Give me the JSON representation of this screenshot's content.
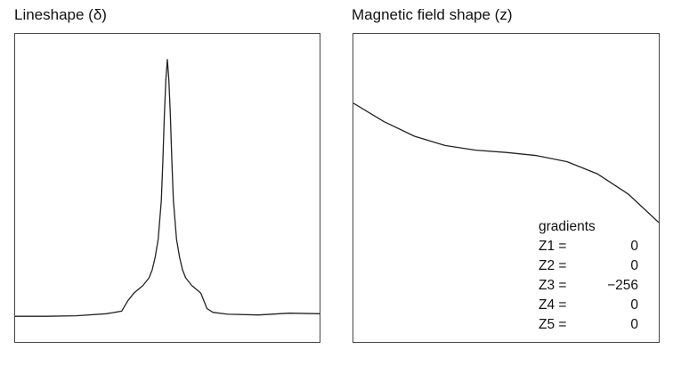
{
  "chart_data": [
    {
      "type": "line",
      "title": "Lineshape (δ)",
      "xlabel": "",
      "ylabel": "",
      "grid": false,
      "description": "Single narrow resonance peak with small shoulders near the base, centered in the window",
      "x": [
        0,
        0.1,
        0.2,
        0.3,
        0.35,
        0.37,
        0.39,
        0.4,
        0.42,
        0.44,
        0.45,
        0.46,
        0.47,
        0.48,
        0.485,
        0.49,
        0.495,
        0.5,
        0.505,
        0.51,
        0.515,
        0.52,
        0.53,
        0.54,
        0.55,
        0.56,
        0.58,
        0.6,
        0.61,
        0.63,
        0.65,
        0.7,
        0.8,
        0.9,
        1.0
      ],
      "y": [
        0.0,
        0.0,
        0.002,
        0.01,
        0.02,
        0.06,
        0.09,
        0.1,
        0.12,
        0.15,
        0.18,
        0.23,
        0.3,
        0.45,
        0.6,
        0.78,
        0.92,
        1.0,
        0.92,
        0.78,
        0.6,
        0.45,
        0.3,
        0.23,
        0.18,
        0.15,
        0.12,
        0.1,
        0.09,
        0.03,
        0.015,
        0.008,
        0.005,
        0.012,
        0.01
      ],
      "xlim": [
        0,
        1
      ],
      "ylim": [
        -0.1,
        1.1
      ]
    },
    {
      "type": "line",
      "title": "Magnetic field shape (z)",
      "xlabel": "",
      "ylabel": "",
      "grid": false,
      "x": [
        0,
        0.1,
        0.2,
        0.3,
        0.4,
        0.5,
        0.6,
        0.7,
        0.8,
        0.9,
        1.0
      ],
      "y": [
        0.7,
        0.46,
        0.27,
        0.15,
        0.09,
        0.06,
        0.02,
        -0.06,
        -0.22,
        -0.48,
        -0.85
      ],
      "xlim": [
        0,
        1
      ],
      "ylim": [
        -2.4,
        1.6
      ],
      "legend": {
        "title": "gradients",
        "entries": [
          {
            "label": "Z1 =",
            "value": "0"
          },
          {
            "label": "Z2 =",
            "value": "0"
          },
          {
            "label": "Z3 =",
            "value": "−256"
          },
          {
            "label": "Z4 =",
            "value": "0"
          },
          {
            "label": "Z5 =",
            "value": "0"
          }
        ]
      }
    }
  ],
  "colors": {
    "curve": "#222222",
    "frame": "#444444"
  }
}
